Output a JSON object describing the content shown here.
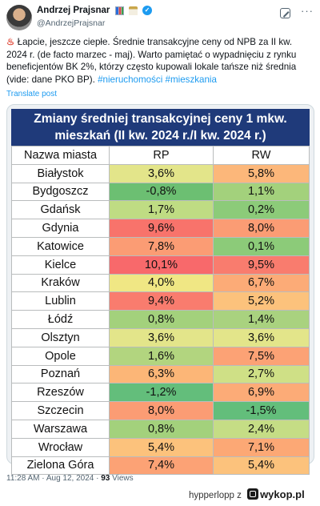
{
  "post": {
    "author_name": "Andrzej Prajsnar",
    "author_handle": "@AndrzejPrajsnar",
    "text_lead": "Łapcie, jeszcze ciepłe. Średnie transakcyjne ceny od NPB za II kw. 2024 r. (de facto marzec - maj). Warto pamiętać o wypadnięciu z rynku beneficjentów BK 2%, którzy często kupowali lokale tańsze niż średnia (vide: dane PKO BP).",
    "hashtag_1": "#nieruchomości",
    "hashtag_2": "#mieszkania",
    "translate_label": "Translate post",
    "time": "11:28 AM",
    "date": "Aug 12, 2024",
    "views_count": "93",
    "views_label": "Views"
  },
  "table": {
    "title": "Zmiany średniej transakcyjnej ceny 1 mkw. mieszkań (II kw. 2024 r./I kw. 2024 r.)",
    "headers": [
      "Nazwa miasta",
      "RP",
      "RW"
    ],
    "rows": [
      {
        "city": "Białystok",
        "rp": "3,6%",
        "rw": "5,8%",
        "rp_color": "#e3e58a",
        "rw_color": "#fcb77a"
      },
      {
        "city": "Bydgoszcz",
        "rp": "-0,8%",
        "rw": "1,1%",
        "rp_color": "#6cbf72",
        "rw_color": "#a3d17c"
      },
      {
        "city": "Gdańsk",
        "rp": "1,7%",
        "rw": "0,2%",
        "rp_color": "#bfdc83",
        "rw_color": "#8ccb79"
      },
      {
        "city": "Gdynia",
        "rp": "9,6%",
        "rw": "8,0%",
        "rp_color": "#f8736b",
        "rw_color": "#fb9c74"
      },
      {
        "city": "Katowice",
        "rp": "7,8%",
        "rw": "0,1%",
        "rp_color": "#fb9c74",
        "rw_color": "#8ccb79"
      },
      {
        "city": "Kielce",
        "rp": "10,1%",
        "rw": "9,5%",
        "rp_color": "#f8696b",
        "rw_color": "#f97c6e"
      },
      {
        "city": "Kraków",
        "rp": "4,0%",
        "rw": "6,7%",
        "rp_color": "#f0e784",
        "rw_color": "#fcab77"
      },
      {
        "city": "Lublin",
        "rp": "9,4%",
        "rw": "5,2%",
        "rp_color": "#f97c6e",
        "rw_color": "#fcc27c"
      },
      {
        "city": "Łódź",
        "rp": "0,8%",
        "rw": "1,4%",
        "rp_color": "#a3d17c",
        "rw_color": "#a9d27f"
      },
      {
        "city": "Olsztyn",
        "rp": "3,6%",
        "rw": "3,6%",
        "rp_color": "#e3e58a",
        "rw_color": "#e3e58a"
      },
      {
        "city": "Opole",
        "rp": "1,6%",
        "rw": "7,5%",
        "rp_color": "#b2d57f",
        "rw_color": "#fca275"
      },
      {
        "city": "Poznań",
        "rp": "6,3%",
        "rw": "2,7%",
        "rp_color": "#fcb677",
        "rw_color": "#cfe086"
      },
      {
        "city": "Rzeszów",
        "rp": "-1,2%",
        "rw": "6,9%",
        "rp_color": "#63be7b",
        "rw_color": "#fcab77"
      },
      {
        "city": "Szczecin",
        "rp": "8,0%",
        "rw": "-1,5%",
        "rp_color": "#fb9c74",
        "rw_color": "#63be7b"
      },
      {
        "city": "Warszawa",
        "rp": "0,8%",
        "rw": "2,4%",
        "rp_color": "#a3d17c",
        "rw_color": "#c5dd85"
      },
      {
        "city": "Wrocław",
        "rp": "5,4%",
        "rw": "7,1%",
        "rp_color": "#fcc27c",
        "rw_color": "#fca875"
      },
      {
        "city": "Zielona Góra",
        "rp": "7,4%",
        "rw": "5,4%",
        "rp_color": "#fca275",
        "rw_color": "#fcc27c"
      }
    ]
  },
  "watermark": {
    "username": "hypperlopp",
    "z_label": "z",
    "site": "wykop.pl"
  }
}
